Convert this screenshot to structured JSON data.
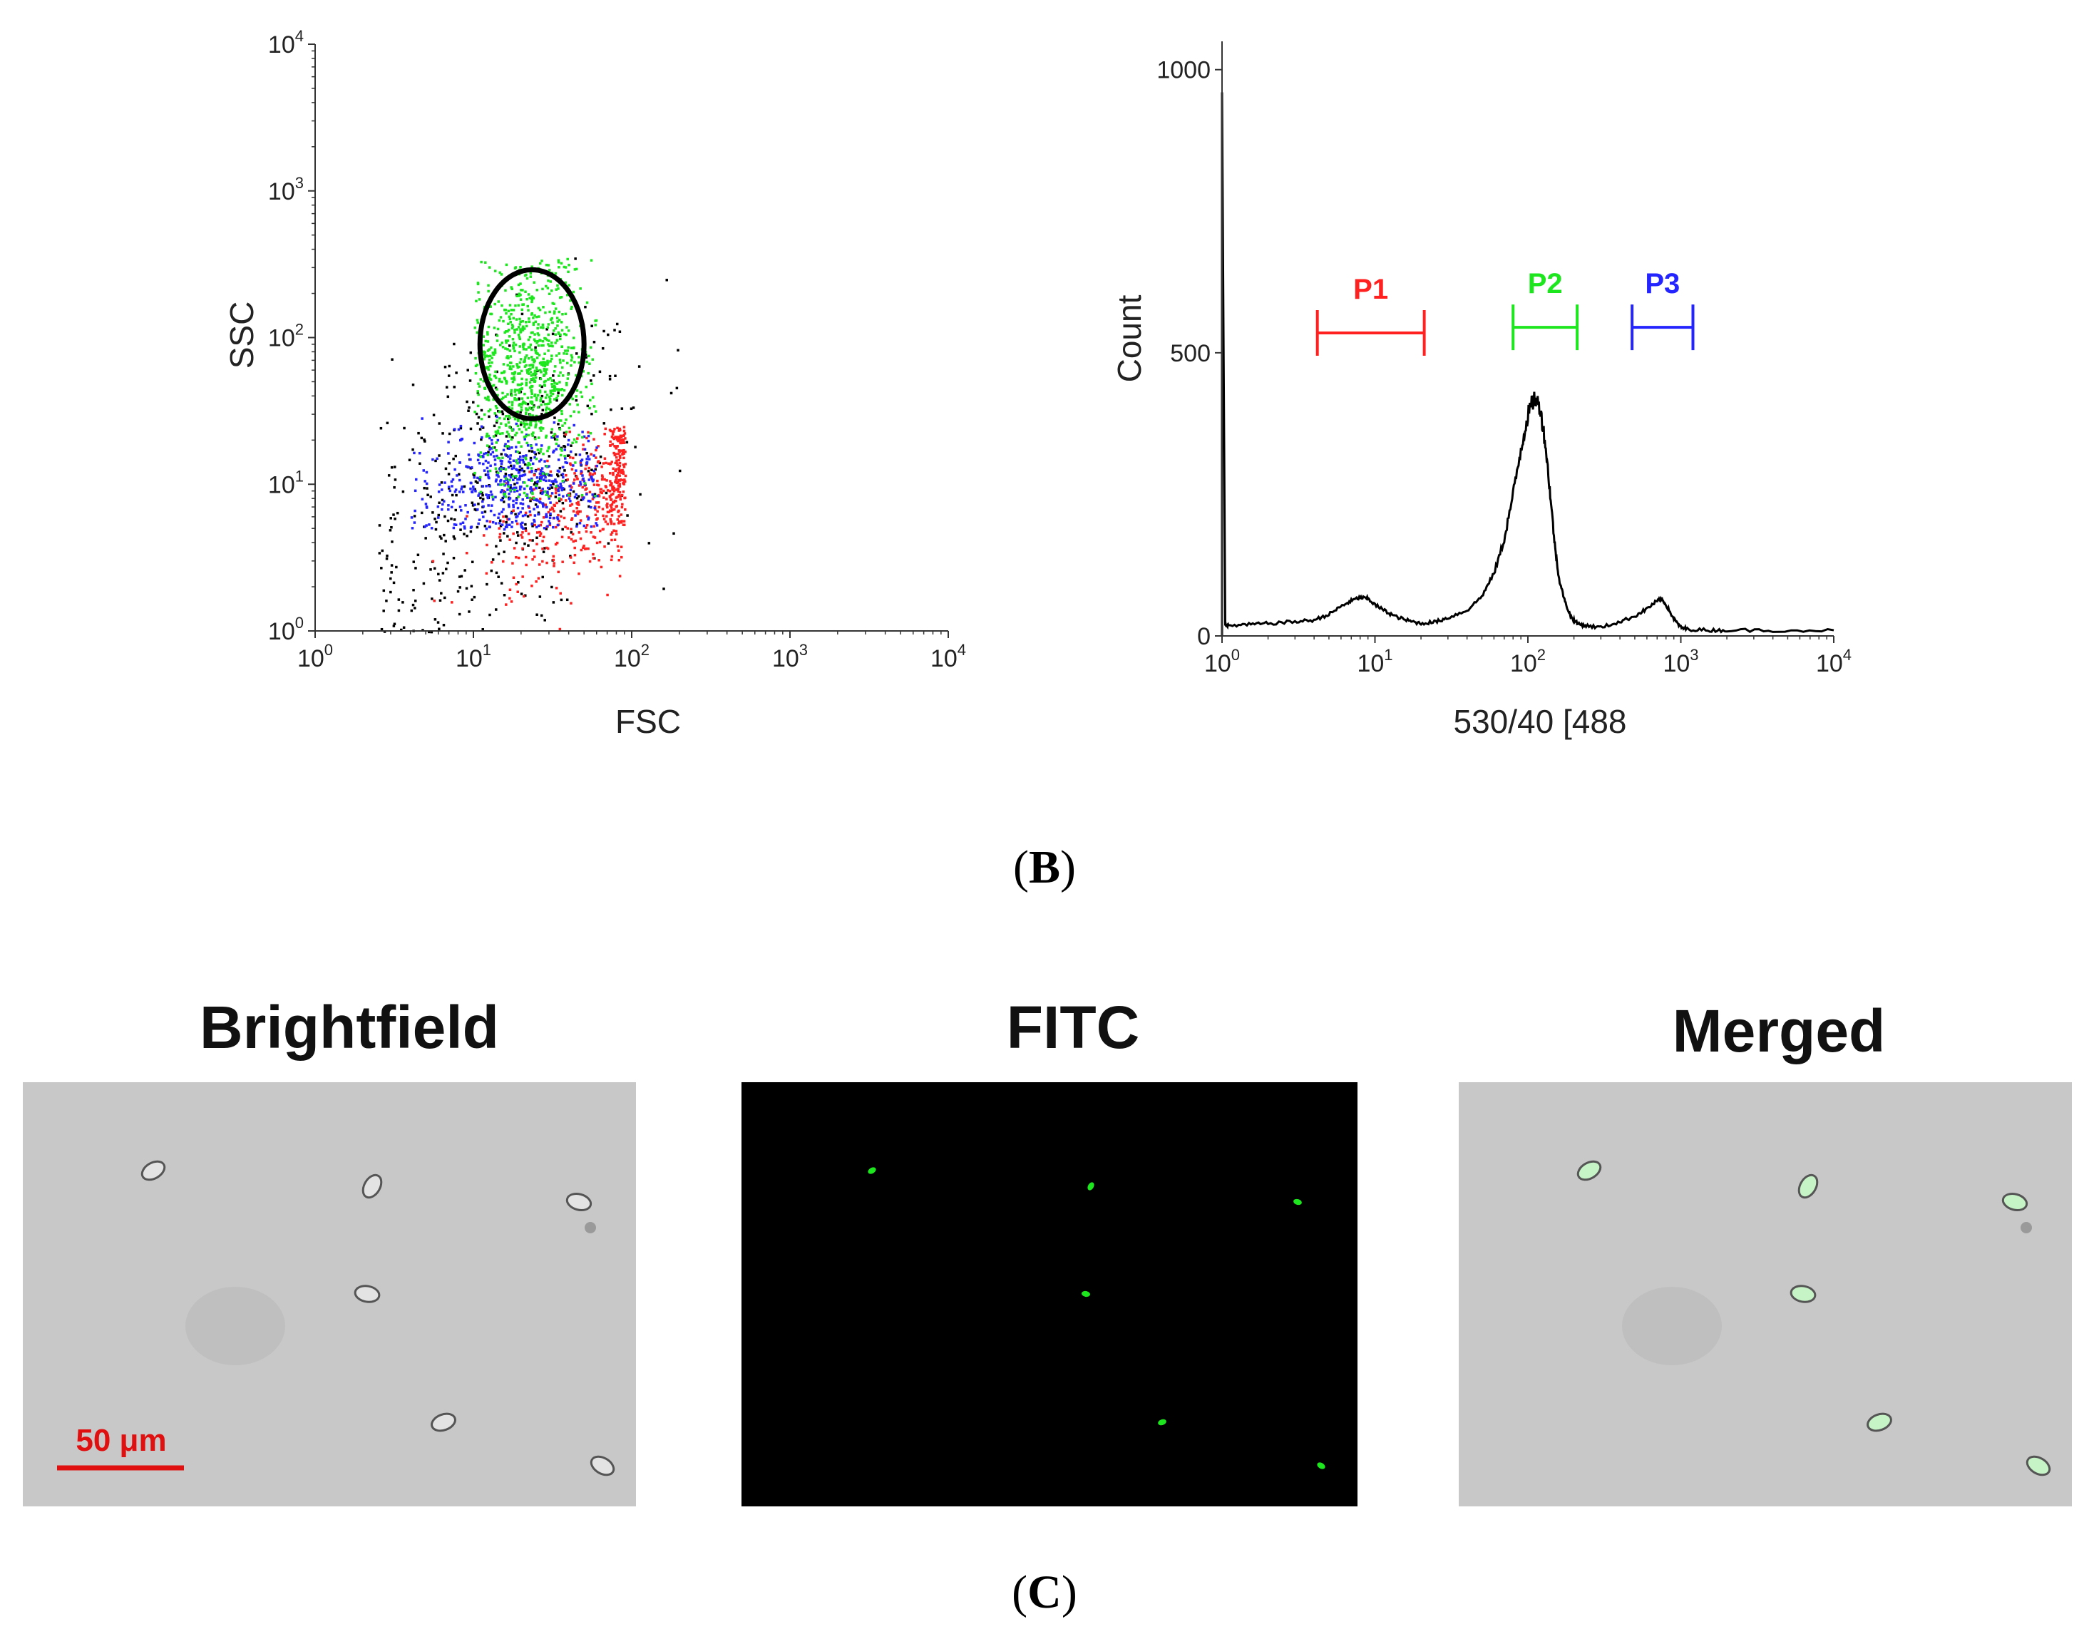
{
  "panel_b": {
    "tag": "(B)",
    "tag_letter": "B"
  },
  "panel_c": {
    "tag": "(C)",
    "tag_letter": "C",
    "images": [
      {
        "title": "Brightfield",
        "background": "#c9c9c9",
        "scale_bar": "50 μm"
      },
      {
        "title": "FITC",
        "background": "#000000"
      },
      {
        "title": "Merged",
        "background": "#c9c9c9"
      }
    ]
  },
  "colors": {
    "axis": "#333333",
    "red": "#ff2020",
    "green": "#1ee61e",
    "blue": "#2424ff",
    "black": "#000000",
    "scale_bar": "#e01010"
  },
  "chart_data": [
    {
      "type": "scatter",
      "name": "fsc-ssc-scatter",
      "xlabel": "FSC",
      "ylabel": "SSC",
      "xscale": "log",
      "yscale": "log",
      "xlim": [
        1,
        10000
      ],
      "ylim": [
        1,
        10000
      ],
      "xticks": [
        {
          "value": 1,
          "base": "10",
          "exp": "0"
        },
        {
          "value": 10,
          "base": "10",
          "exp": "1"
        },
        {
          "value": 100,
          "base": "10",
          "exp": "2"
        },
        {
          "value": 1000,
          "base": "10",
          "exp": "3"
        },
        {
          "value": 10000,
          "base": "10",
          "exp": "4"
        }
      ],
      "yticks": [
        {
          "value": 1,
          "base": "10",
          "exp": "0"
        },
        {
          "value": 10,
          "base": "10",
          "exp": "1"
        },
        {
          "value": 100,
          "base": "10",
          "exp": "2"
        },
        {
          "value": 1000,
          "base": "10",
          "exp": "3"
        },
        {
          "value": 10000,
          "base": "10",
          "exp": "4"
        }
      ],
      "gate": {
        "shape": "ellipse",
        "center": [
          20,
          85
        ],
        "x_range": [
          11,
          50
        ],
        "y_range": [
          28,
          290
        ]
      },
      "populations": [
        {
          "name": "green",
          "color": "#1ee61e",
          "center": [
            22,
            60
          ],
          "x_span": [
            10,
            60
          ],
          "y_span": [
            8,
            350
          ],
          "approx_points": 900
        },
        {
          "name": "blue",
          "color": "#2424ff",
          "center": [
            18,
            10
          ],
          "x_span": [
            4,
            60
          ],
          "y_span": [
            5,
            30
          ],
          "approx_points": 500
        },
        {
          "name": "red",
          "color": "#ff2020",
          "center": [
            55,
            8
          ],
          "x_span": [
            3,
            90
          ],
          "y_span": [
            1,
            25
          ],
          "approx_points": 500
        },
        {
          "name": "black",
          "color": "#000000",
          "center": [
            15,
            10
          ],
          "x_span": [
            2.5,
            200
          ],
          "y_span": [
            1,
            700
          ],
          "approx_points": 450
        }
      ]
    },
    {
      "type": "line",
      "name": "fitc-histogram",
      "xlabel": "530/40 [488",
      "ylabel": "Count",
      "xscale": "log",
      "xlim": [
        1,
        10000
      ],
      "ylim": [
        0,
        1050
      ],
      "xticks": [
        {
          "value": 1,
          "base": "10",
          "exp": "0"
        },
        {
          "value": 10,
          "base": "10",
          "exp": "1"
        },
        {
          "value": 100,
          "base": "10",
          "exp": "2"
        },
        {
          "value": 1000,
          "base": "10",
          "exp": "3"
        },
        {
          "value": 10000,
          "base": "10",
          "exp": "4"
        }
      ],
      "yticks": [
        0,
        500,
        1000
      ],
      "x": [
        1,
        1.05,
        1.1,
        1.5,
        2,
        3,
        4,
        5,
        6,
        7,
        8,
        9,
        10,
        12,
        14,
        17,
        20,
        25,
        30,
        40,
        50,
        60,
        70,
        80,
        90,
        100,
        110,
        120,
        130,
        140,
        150,
        160,
        175,
        190,
        210,
        240,
        300,
        400,
        500,
        600,
        700,
        750,
        800,
        900,
        1000,
        1100,
        1500,
        2000,
        4000,
        10000
      ],
      "y": [
        960,
        20,
        18,
        20,
        22,
        25,
        28,
        38,
        52,
        62,
        68,
        66,
        55,
        42,
        33,
        26,
        22,
        25,
        32,
        45,
        70,
        110,
        170,
        250,
        330,
        390,
        420,
        405,
        340,
        250,
        160,
        100,
        60,
        35,
        22,
        18,
        15,
        25,
        35,
        48,
        62,
        65,
        55,
        30,
        15,
        12,
        10,
        10,
        10,
        10
      ],
      "gates": [
        {
          "label": "P1",
          "color": "#ff2020",
          "range": [
            4.2,
            21
          ],
          "level": 535
        },
        {
          "label": "P2",
          "color": "#1ee61e",
          "range": [
            80,
            210
          ],
          "level": 545
        },
        {
          "label": "P3",
          "color": "#2424ff",
          "range": [
            480,
            1200
          ],
          "level": 545
        }
      ]
    }
  ]
}
